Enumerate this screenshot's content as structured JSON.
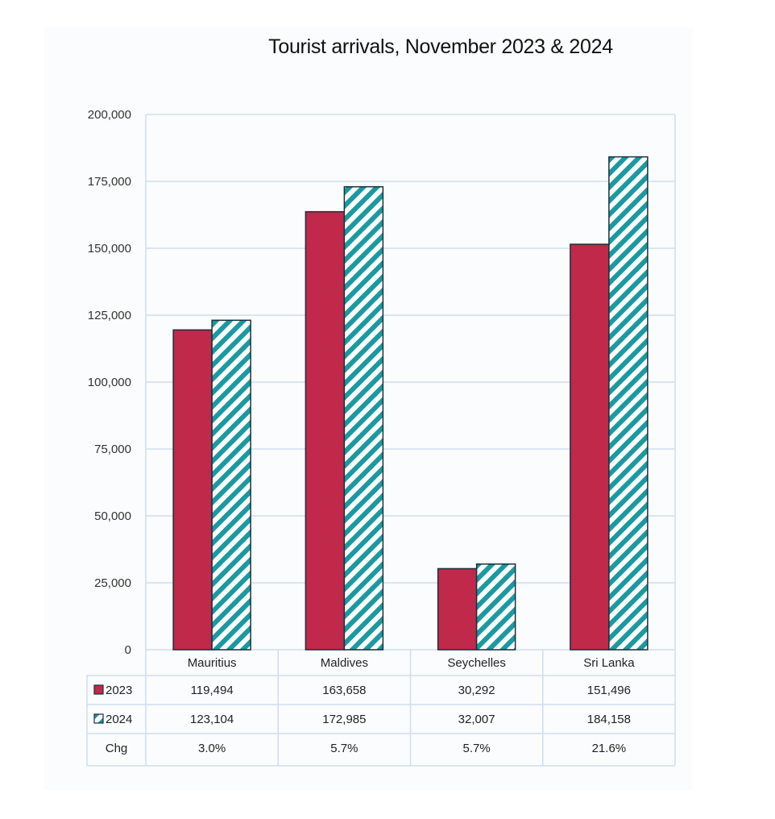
{
  "chart_data": {
    "type": "bar",
    "title": "Tourist arrivals, November 2023 & 2024",
    "categories": [
      "Mauritius",
      "Maldives",
      "Seychelles",
      "Sri Lanka"
    ],
    "series": [
      {
        "name": "2023",
        "values": [
          119494,
          163658,
          30292,
          151496
        ],
        "color": "#c0294a",
        "pattern": "solid"
      },
      {
        "name": "2024",
        "values": [
          123104,
          172985,
          32007,
          184158
        ],
        "color": "#1a9aa0",
        "pattern": "diagonal-stripes"
      }
    ],
    "ylim": [
      0,
      200000
    ],
    "yticks": [
      "0",
      "25,000",
      "50,000",
      "75,000",
      "100,000",
      "125,000",
      "150,000",
      "175,000",
      "200,000"
    ],
    "grid": true,
    "legend": "data-table",
    "table": {
      "rows": [
        {
          "label": "2023",
          "cells": [
            "119,494",
            "163,658",
            "30,292",
            "151,496"
          ]
        },
        {
          "label": "2024",
          "cells": [
            "123,104",
            "172,985",
            "32,007",
            "184,158"
          ]
        },
        {
          "label": "Chg",
          "cells": [
            "3.0%",
            "5.7%",
            "5.7%",
            "21.6%"
          ]
        }
      ]
    },
    "colors": {
      "grid": "#cfddee",
      "bar_outline": "#1c2f3c"
    }
  }
}
